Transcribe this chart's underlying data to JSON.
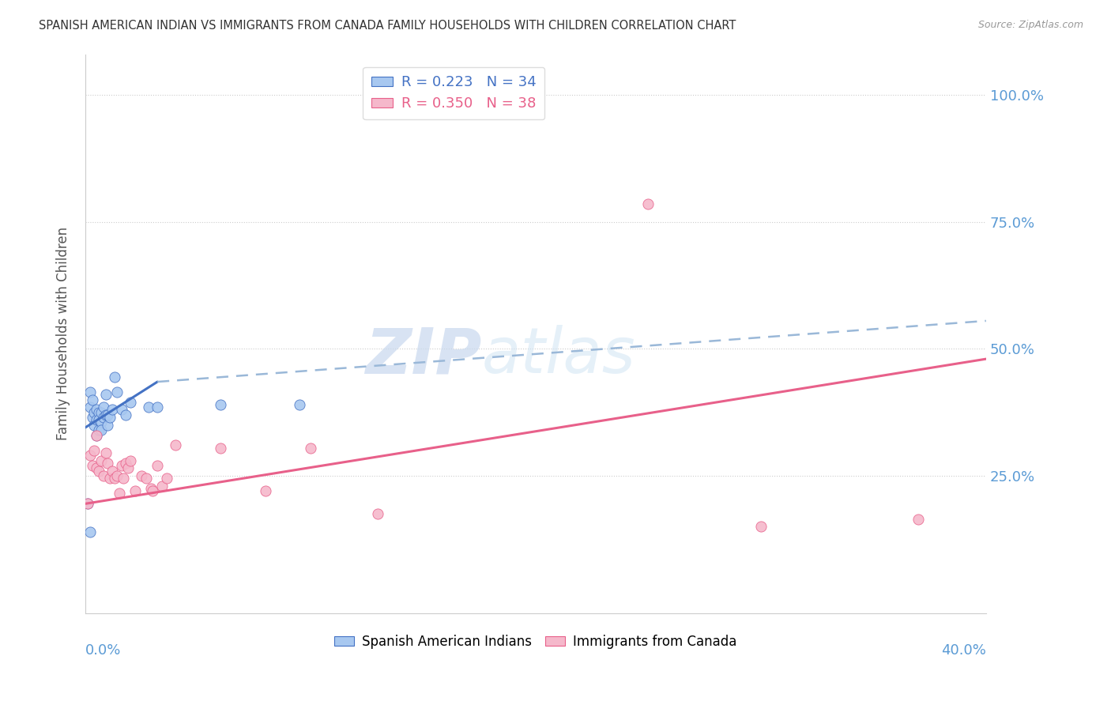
{
  "title": "SPANISH AMERICAN INDIAN VS IMMIGRANTS FROM CANADA FAMILY HOUSEHOLDS WITH CHILDREN CORRELATION CHART",
  "source": "Source: ZipAtlas.com",
  "ylabel": "Family Households with Children",
  "ytick_labels": [
    "100.0%",
    "75.0%",
    "50.0%",
    "25.0%"
  ],
  "ytick_values": [
    1.0,
    0.75,
    0.5,
    0.25
  ],
  "color_blue": "#a8c8f0",
  "color_pink": "#f5b8cb",
  "line_blue": "#4472c4",
  "line_pink": "#e8608a",
  "line_dash": "#9ab8d8",
  "watermark_zip": "ZIP",
  "watermark_atlas": "atlas",
  "blue_scatter_x": [
    0.001,
    0.002,
    0.002,
    0.003,
    0.003,
    0.004,
    0.004,
    0.005,
    0.005,
    0.005,
    0.006,
    0.006,
    0.006,
    0.007,
    0.007,
    0.007,
    0.008,
    0.008,
    0.009,
    0.009,
    0.01,
    0.01,
    0.011,
    0.012,
    0.013,
    0.014,
    0.016,
    0.018,
    0.02,
    0.028,
    0.032,
    0.06,
    0.095,
    0.002
  ],
  "blue_scatter_y": [
    0.195,
    0.415,
    0.385,
    0.4,
    0.365,
    0.375,
    0.35,
    0.36,
    0.38,
    0.33,
    0.375,
    0.36,
    0.34,
    0.375,
    0.355,
    0.34,
    0.385,
    0.365,
    0.41,
    0.37,
    0.37,
    0.35,
    0.365,
    0.38,
    0.445,
    0.415,
    0.38,
    0.37,
    0.395,
    0.385,
    0.385,
    0.39,
    0.39,
    0.14
  ],
  "pink_scatter_x": [
    0.001,
    0.002,
    0.003,
    0.004,
    0.005,
    0.005,
    0.006,
    0.007,
    0.008,
    0.009,
    0.01,
    0.011,
    0.012,
    0.013,
    0.014,
    0.015,
    0.016,
    0.017,
    0.018,
    0.019,
    0.02,
    0.022,
    0.025,
    0.027,
    0.029,
    0.03,
    0.032,
    0.034,
    0.036,
    0.04,
    0.06,
    0.08,
    0.1,
    0.13,
    0.16,
    0.25,
    0.3,
    0.37
  ],
  "pink_scatter_y": [
    0.195,
    0.29,
    0.27,
    0.3,
    0.265,
    0.33,
    0.26,
    0.28,
    0.25,
    0.295,
    0.275,
    0.245,
    0.26,
    0.245,
    0.25,
    0.215,
    0.27,
    0.245,
    0.275,
    0.265,
    0.28,
    0.22,
    0.25,
    0.245,
    0.225,
    0.22,
    0.27,
    0.23,
    0.245,
    0.31,
    0.305,
    0.22,
    0.305,
    0.175,
    1.005,
    0.785,
    0.15,
    0.165
  ],
  "blue_line_x": [
    0.0,
    0.032
  ],
  "blue_line_y": [
    0.345,
    0.435
  ],
  "dash_line_x": [
    0.032,
    0.4
  ],
  "dash_line_y": [
    0.435,
    0.555
  ],
  "pink_line_x": [
    0.0,
    0.4
  ],
  "pink_line_y": [
    0.195,
    0.48
  ],
  "xlim": [
    0.0,
    0.4
  ],
  "ylim": [
    -0.02,
    1.08
  ],
  "background_color": "#ffffff"
}
